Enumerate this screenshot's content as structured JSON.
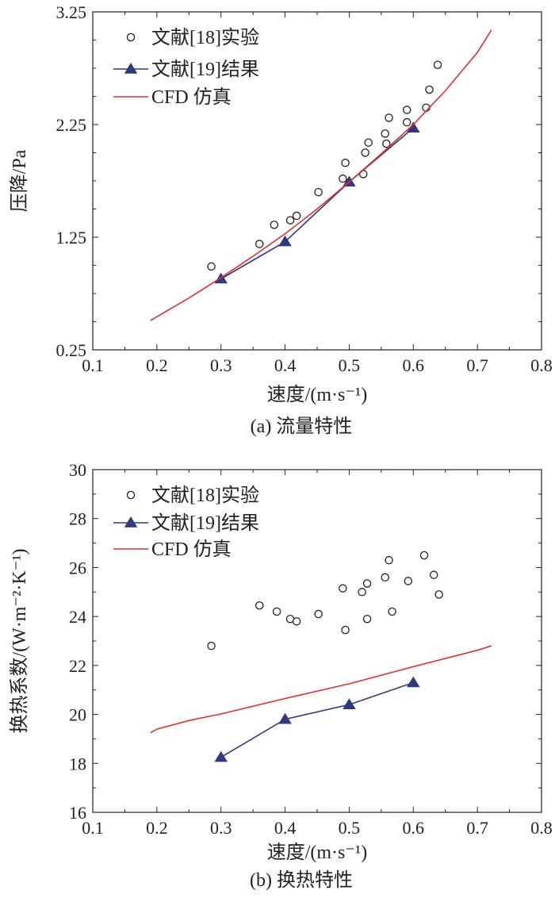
{
  "chart_data": [
    {
      "type": "line",
      "caption": "(a) 流量特性",
      "xlabel": "速度/(m·s⁻¹)",
      "ylabel": "压降/Pa",
      "xlim": [
        0.1,
        0.8
      ],
      "ylim": [
        0.25,
        3.25
      ],
      "xticks": [
        "0.1",
        "0.2",
        "0.3",
        "0.4",
        "0.5",
        "0.6",
        "0.7",
        "0.8"
      ],
      "yticks": [
        "0.25",
        "1.25",
        "2.25",
        "3.25"
      ],
      "legend": [
        "文献[18]实验",
        "文献[19]结果",
        "CFD 仿真"
      ],
      "colors": {
        "experiment": "#222222",
        "literature": "#2e3a7a",
        "cfd": "#e03030"
      },
      "series": [
        {
          "name": "文献[18]实验",
          "marker": "circle",
          "points": [
            [
              0.285,
              0.99
            ],
            [
              0.36,
              1.19
            ],
            [
              0.383,
              1.36
            ],
            [
              0.408,
              1.4
            ],
            [
              0.418,
              1.44
            ],
            [
              0.452,
              1.65
            ],
            [
              0.49,
              1.77
            ],
            [
              0.494,
              1.91
            ],
            [
              0.522,
              1.81
            ],
            [
              0.525,
              2.0
            ],
            [
              0.53,
              2.09
            ],
            [
              0.556,
              2.17
            ],
            [
              0.558,
              2.08
            ],
            [
              0.562,
              2.31
            ],
            [
              0.59,
              2.38
            ],
            [
              0.59,
              2.27
            ],
            [
              0.62,
              2.4
            ],
            [
              0.625,
              2.56
            ],
            [
              0.638,
              2.78
            ]
          ]
        },
        {
          "name": "文献[19]结果",
          "marker": "triangle",
          "points": [
            [
              0.3,
              0.88
            ],
            [
              0.4,
              1.21
            ],
            [
              0.5,
              1.74
            ],
            [
              0.6,
              2.22
            ]
          ]
        },
        {
          "name": "CFD 仿真",
          "marker": "none",
          "points": [
            [
              0.19,
              0.51
            ],
            [
              0.25,
              0.71
            ],
            [
              0.3,
              0.89
            ],
            [
              0.35,
              1.08
            ],
            [
              0.4,
              1.28
            ],
            [
              0.45,
              1.5
            ],
            [
              0.5,
              1.74
            ],
            [
              0.55,
              1.99
            ],
            [
              0.6,
              2.25
            ],
            [
              0.65,
              2.55
            ],
            [
              0.7,
              2.89
            ],
            [
              0.722,
              3.09
            ]
          ]
        }
      ]
    },
    {
      "type": "line",
      "caption": "(b) 换热特性",
      "xlabel": "速度/(m·s⁻¹)",
      "ylabel": "换热系数/(W·m⁻²·K⁻¹)",
      "xlim": [
        0.1,
        0.8
      ],
      "ylim": [
        16,
        30
      ],
      "xticks": [
        "0.1",
        "0.2",
        "0.3",
        "0.4",
        "0.5",
        "0.6",
        "0.7",
        "0.8"
      ],
      "yticks": [
        "16",
        "18",
        "20",
        "22",
        "24",
        "26",
        "28",
        "30"
      ],
      "legend": [
        "文献[18]实验",
        "文献[19]结果",
        "CFD 仿真"
      ],
      "colors": {
        "experiment": "#222222",
        "literature": "#2e3a7a",
        "cfd": "#e03030"
      },
      "series": [
        {
          "name": "文献[18]实验",
          "marker": "circle",
          "points": [
            [
              0.285,
              22.8
            ],
            [
              0.36,
              24.45
            ],
            [
              0.387,
              24.2
            ],
            [
              0.408,
              23.9
            ],
            [
              0.418,
              23.8
            ],
            [
              0.452,
              24.1
            ],
            [
              0.49,
              25.15
            ],
            [
              0.494,
              23.45
            ],
            [
              0.52,
              25.0
            ],
            [
              0.528,
              25.35
            ],
            [
              0.528,
              23.9
            ],
            [
              0.556,
              25.6
            ],
            [
              0.562,
              26.3
            ],
            [
              0.567,
              24.2
            ],
            [
              0.592,
              25.45
            ],
            [
              0.617,
              26.5
            ],
            [
              0.632,
              25.7
            ],
            [
              0.64,
              24.9
            ]
          ]
        },
        {
          "name": "文献[19]结果",
          "marker": "triangle",
          "points": [
            [
              0.3,
              18.25
            ],
            [
              0.4,
              19.8
            ],
            [
              0.5,
              20.4
            ],
            [
              0.6,
              21.3
            ]
          ]
        },
        {
          "name": "CFD 仿真",
          "marker": "none",
          "points": [
            [
              0.19,
              19.25
            ],
            [
              0.2,
              19.4
            ],
            [
              0.25,
              19.75
            ],
            [
              0.3,
              20.02
            ],
            [
              0.4,
              20.65
            ],
            [
              0.5,
              21.25
            ],
            [
              0.6,
              21.95
            ],
            [
              0.7,
              22.62
            ],
            [
              0.722,
              22.8
            ]
          ]
        }
      ]
    }
  ]
}
